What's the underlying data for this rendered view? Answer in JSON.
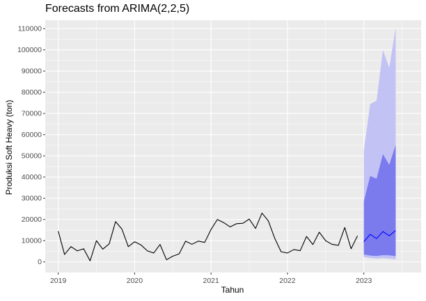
{
  "chart_data": {
    "type": "line",
    "title": "Forecasts from ARIMA(2,2,5)",
    "xlabel": "Tahun",
    "ylabel": "Produksi Soft Heavy (ton)",
    "xlim": [
      2018.83,
      2023.75
    ],
    "ylim": [
      -5000,
      114000
    ],
    "x_ticks": [
      2019,
      2020,
      2021,
      2022,
      2023
    ],
    "x_tick_labels": [
      "2019",
      "2020",
      "2021",
      "2022",
      "2023"
    ],
    "y_ticks": [
      0,
      10000,
      20000,
      30000,
      40000,
      50000,
      60000,
      70000,
      80000,
      90000,
      100000,
      110000
    ],
    "y_tick_labels": [
      "0",
      "10000",
      "20000",
      "30000",
      "40000",
      "50000",
      "60000",
      "70000",
      "80000",
      "90000",
      "100000",
      "110000"
    ],
    "grid": true,
    "colors": {
      "panel": "#ebebeb",
      "grid_major": "#ffffff",
      "observed": "#000000",
      "forecast": "#0000ff",
      "interval_80": "#7b7bee",
      "interval_95": "#c2c2f5"
    },
    "series": [
      {
        "role": "observed",
        "x": [
          2019.0,
          2019.083,
          2019.167,
          2019.25,
          2019.333,
          2019.417,
          2019.5,
          2019.583,
          2019.667,
          2019.75,
          2019.833,
          2019.917,
          2020.0,
          2020.083,
          2020.167,
          2020.25,
          2020.333,
          2020.417,
          2020.5,
          2020.583,
          2020.667,
          2020.75,
          2020.833,
          2020.917,
          2021.0,
          2021.083,
          2021.167,
          2021.25,
          2021.333,
          2021.417,
          2021.5,
          2021.583,
          2021.667,
          2021.75,
          2021.833,
          2021.917,
          2022.0,
          2022.083,
          2022.167,
          2022.25,
          2022.333,
          2022.417,
          2022.5,
          2022.583,
          2022.667,
          2022.75,
          2022.833,
          2022.917
        ],
        "values": [
          14500,
          3500,
          7200,
          5200,
          6200,
          500,
          10000,
          6000,
          8500,
          19000,
          15500,
          7200,
          9500,
          8000,
          5200,
          4200,
          8200,
          1000,
          2700,
          3800,
          9800,
          8300,
          9800,
          9200,
          15300,
          20000,
          18500,
          16500,
          18000,
          18200,
          20200,
          15800,
          23000,
          19300,
          11200,
          4800,
          4200,
          5800,
          5300,
          12000,
          8200,
          14000,
          10000,
          8300,
          7800,
          16200,
          6200,
          12300
        ]
      },
      {
        "role": "forecast",
        "x": [
          2023.0,
          2023.083,
          2023.167,
          2023.25,
          2023.333,
          2023.417
        ],
        "values": [
          9500,
          13000,
          11000,
          14300,
          12300,
          14800
        ],
        "lo80": [
          3500,
          3000,
          2800,
          3200,
          3100,
          2700
        ],
        "hi80": [
          28500,
          40500,
          39200,
          50800,
          45800,
          55200
        ],
        "lo95": [
          2200,
          1800,
          1500,
          1700,
          1500,
          1200
        ],
        "hi95": [
          52500,
          74500,
          76000,
          100000,
          91500,
          110500
        ]
      }
    ]
  }
}
